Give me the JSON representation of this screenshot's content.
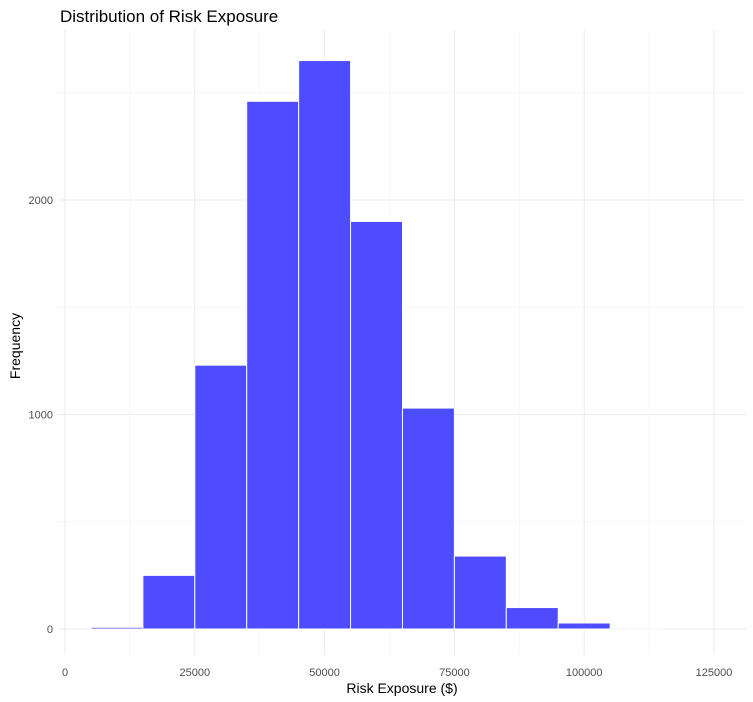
{
  "chart_data": {
    "type": "bar",
    "title": "Distribution of Risk Exposure",
    "xlabel": "Risk Exposure ($)",
    "ylabel": "Frequency",
    "bar_color": "#4d4dff",
    "bin_width": 10000,
    "bins": [
      {
        "x0": 5000,
        "x1": 15000,
        "count": 8
      },
      {
        "x0": 15000,
        "x1": 25000,
        "count": 250
      },
      {
        "x0": 25000,
        "x1": 35000,
        "count": 1230
      },
      {
        "x0": 35000,
        "x1": 45000,
        "count": 2460
      },
      {
        "x0": 45000,
        "x1": 55000,
        "count": 2650
      },
      {
        "x0": 55000,
        "x1": 65000,
        "count": 1900
      },
      {
        "x0": 65000,
        "x1": 75000,
        "count": 1030
      },
      {
        "x0": 75000,
        "x1": 85000,
        "count": 340
      },
      {
        "x0": 85000,
        "x1": 95000,
        "count": 100
      },
      {
        "x0": 95000,
        "x1": 105000,
        "count": 28
      },
      {
        "x0": 105000,
        "x1": 115000,
        "count": 5
      }
    ],
    "xlim": [
      0,
      125000
    ],
    "ylim": [
      0,
      2650
    ],
    "x_ticks": [
      0,
      25000,
      50000,
      75000,
      100000,
      125000
    ],
    "x_tick_labels": [
      "0",
      "25000",
      "50000",
      "75000",
      "100000",
      "125000"
    ],
    "y_ticks": [
      0,
      1000,
      2000
    ],
    "y_tick_labels": [
      "0",
      "1000",
      "2000"
    ],
    "grid": true,
    "legend": "none"
  }
}
